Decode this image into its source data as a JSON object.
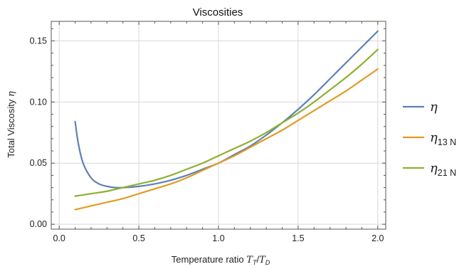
{
  "chart_data": {
    "type": "line",
    "title": "Viscosities",
    "xlabel": {
      "prefix": "Temperature ratio ",
      "num": "T",
      "num_sub": "T",
      "slash": "/",
      "den": "T",
      "den_sub": "D"
    },
    "ylabel": {
      "text": "Total Viscosity ",
      "symbol": "η"
    },
    "xlim": [
      -0.05,
      2.05
    ],
    "ylim": [
      -0.004,
      0.166
    ],
    "xticks": [
      {
        "value": 0.0,
        "label": "0.0"
      },
      {
        "value": 0.5,
        "label": "0.5"
      },
      {
        "value": 1.0,
        "label": "1.0"
      },
      {
        "value": 1.5,
        "label": "1.5"
      },
      {
        "value": 2.0,
        "label": "2.0"
      }
    ],
    "yticks": [
      {
        "value": 0.0,
        "label": "0.00"
      },
      {
        "value": 0.05,
        "label": "0.05"
      },
      {
        "value": 0.1,
        "label": "0.10"
      },
      {
        "value": 0.15,
        "label": "0.15"
      }
    ],
    "grid": true,
    "legend_position": "right",
    "series": [
      {
        "name": "η",
        "name_sub": "",
        "color": "#5E81B5",
        "x": [
          0.1,
          0.12,
          0.15,
          0.2,
          0.25,
          0.3,
          0.35,
          0.4,
          0.5,
          0.6,
          0.7,
          0.8,
          0.9,
          1.0,
          1.1,
          1.2,
          1.3,
          1.4,
          1.5,
          1.6,
          1.7,
          1.8,
          1.9,
          2.0
        ],
        "values": [
          0.084,
          0.066,
          0.05,
          0.038,
          0.033,
          0.031,
          0.03,
          0.03,
          0.031,
          0.033,
          0.036,
          0.04,
          0.045,
          0.05,
          0.057,
          0.064,
          0.073,
          0.083,
          0.094,
          0.106,
          0.119,
          0.132,
          0.145,
          0.158
        ]
      },
      {
        "name": "η",
        "name_sub": "13 N",
        "color": "#E19C24",
        "x": [
          0.1,
          0.2,
          0.3,
          0.4,
          0.5,
          0.6,
          0.7,
          0.8,
          0.9,
          1.0,
          1.1,
          1.2,
          1.3,
          1.4,
          1.5,
          1.6,
          1.7,
          1.8,
          1.9,
          2.0
        ],
        "values": [
          0.012,
          0.015,
          0.018,
          0.021,
          0.025,
          0.029,
          0.033,
          0.038,
          0.044,
          0.05,
          0.056,
          0.063,
          0.07,
          0.077,
          0.085,
          0.093,
          0.101,
          0.109,
          0.118,
          0.127
        ]
      },
      {
        "name": "η",
        "name_sub": "21 N",
        "color": "#8FB032",
        "x": [
          0.1,
          0.2,
          0.3,
          0.4,
          0.5,
          0.6,
          0.7,
          0.8,
          0.9,
          1.0,
          1.1,
          1.2,
          1.3,
          1.4,
          1.5,
          1.6,
          1.7,
          1.8,
          1.9,
          2.0
        ],
        "values": [
          0.023,
          0.025,
          0.027,
          0.03,
          0.033,
          0.036,
          0.04,
          0.045,
          0.05,
          0.056,
          0.062,
          0.068,
          0.075,
          0.083,
          0.091,
          0.1,
          0.11,
          0.12,
          0.131,
          0.143
        ]
      }
    ]
  }
}
